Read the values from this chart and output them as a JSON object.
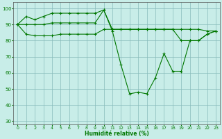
{
  "xlabel": "Humidité relative (%)",
  "background_color": "#c8ede8",
  "grid_color": "#88bbbb",
  "line_color": "#007700",
  "xlim": [
    -0.5,
    23.5
  ],
  "ylim": [
    28,
    104
  ],
  "yticks": [
    30,
    40,
    50,
    60,
    70,
    80,
    90,
    100
  ],
  "xticks": [
    0,
    1,
    2,
    3,
    4,
    5,
    6,
    7,
    8,
    9,
    10,
    11,
    12,
    13,
    14,
    15,
    16,
    17,
    18,
    19,
    20,
    21,
    22,
    23
  ],
  "series": [
    [
      90,
      95,
      93,
      95,
      97,
      97,
      97,
      97,
      97,
      97,
      99,
      86,
      65,
      47,
      48,
      47,
      57,
      72,
      61,
      61,
      80,
      80,
      84,
      86
    ],
    [
      90,
      90,
      90,
      90,
      91,
      91,
      91,
      91,
      91,
      91,
      99,
      87,
      87,
      87,
      87,
      87,
      87,
      87,
      87,
      87,
      87,
      87,
      86,
      86
    ],
    [
      90,
      84,
      83,
      83,
      83,
      84,
      84,
      84,
      84,
      84,
      87,
      87,
      87,
      87,
      87,
      87,
      87,
      87,
      87,
      80,
      80,
      80,
      84,
      86
    ]
  ]
}
